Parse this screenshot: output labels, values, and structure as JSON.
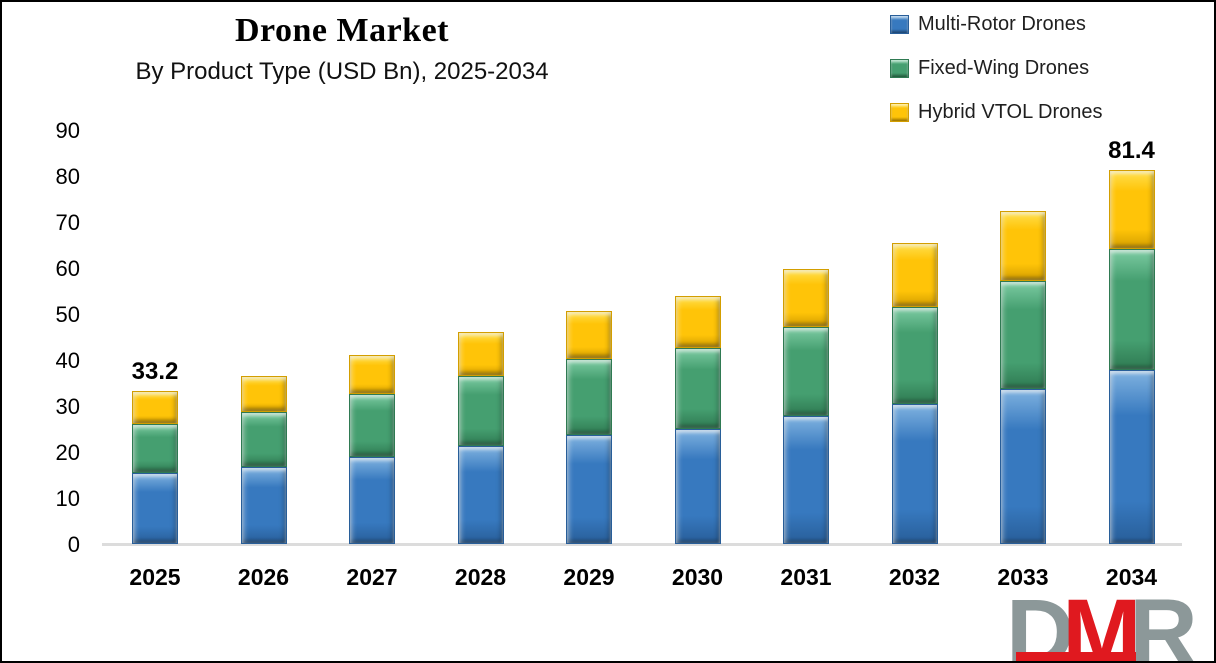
{
  "header": {
    "title": "Drone Market",
    "subtitle": "By Product Type (USD Bn), 2025-2034"
  },
  "chart_data": {
    "type": "bar",
    "stacked": true,
    "title": "Drone Market",
    "subtitle": "By Product Type (USD Bn), 2025-2034",
    "unit": "USD Bn",
    "categories": [
      "2025",
      "2026",
      "2027",
      "2028",
      "2029",
      "2030",
      "2031",
      "2032",
      "2033",
      "2034"
    ],
    "series": [
      {
        "name": "Multi-Rotor Drones",
        "color": "#3779BF",
        "light": "#7fb2e0",
        "dark": "#285e99",
        "values": [
          15.4,
          16.8,
          19.0,
          21.3,
          23.6,
          25.1,
          27.8,
          30.4,
          33.6,
          37.8
        ]
      },
      {
        "name": "Fixed-Wing Drones",
        "color": "#459F70",
        "light": "#7ccba2",
        "dark": "#2f7a52",
        "values": [
          10.7,
          11.9,
          13.7,
          15.2,
          16.6,
          17.6,
          19.3,
          21.2,
          23.5,
          26.4
        ]
      },
      {
        "name": "Hybrid VTOL Drones",
        "color": "#FFC408",
        "light": "#ffe04e",
        "dark": "#d39e00",
        "values": [
          7.1,
          7.8,
          8.5,
          9.6,
          10.4,
          11.3,
          12.7,
          13.8,
          15.3,
          17.2
        ]
      }
    ],
    "totals": [
      33.2,
      36.5,
      41.2,
      46.1,
      50.6,
      54.0,
      59.8,
      65.4,
      72.4,
      81.4
    ],
    "data_labels": [
      {
        "category": "2025",
        "text": "33.2"
      },
      {
        "category": "2034",
        "text": "81.4"
      }
    ],
    "ylim": [
      0,
      90
    ],
    "yticks": [
      0,
      10,
      20,
      30,
      40,
      50,
      60,
      70,
      80,
      90
    ],
    "grid": false,
    "legend_position": "top-right",
    "axis_line_color": "#dcdcdc"
  },
  "logo": {
    "letter_d": "D",
    "letter_m": "M",
    "letter_r": "R",
    "gray": "#8c9899",
    "red": "#e0191f"
  }
}
